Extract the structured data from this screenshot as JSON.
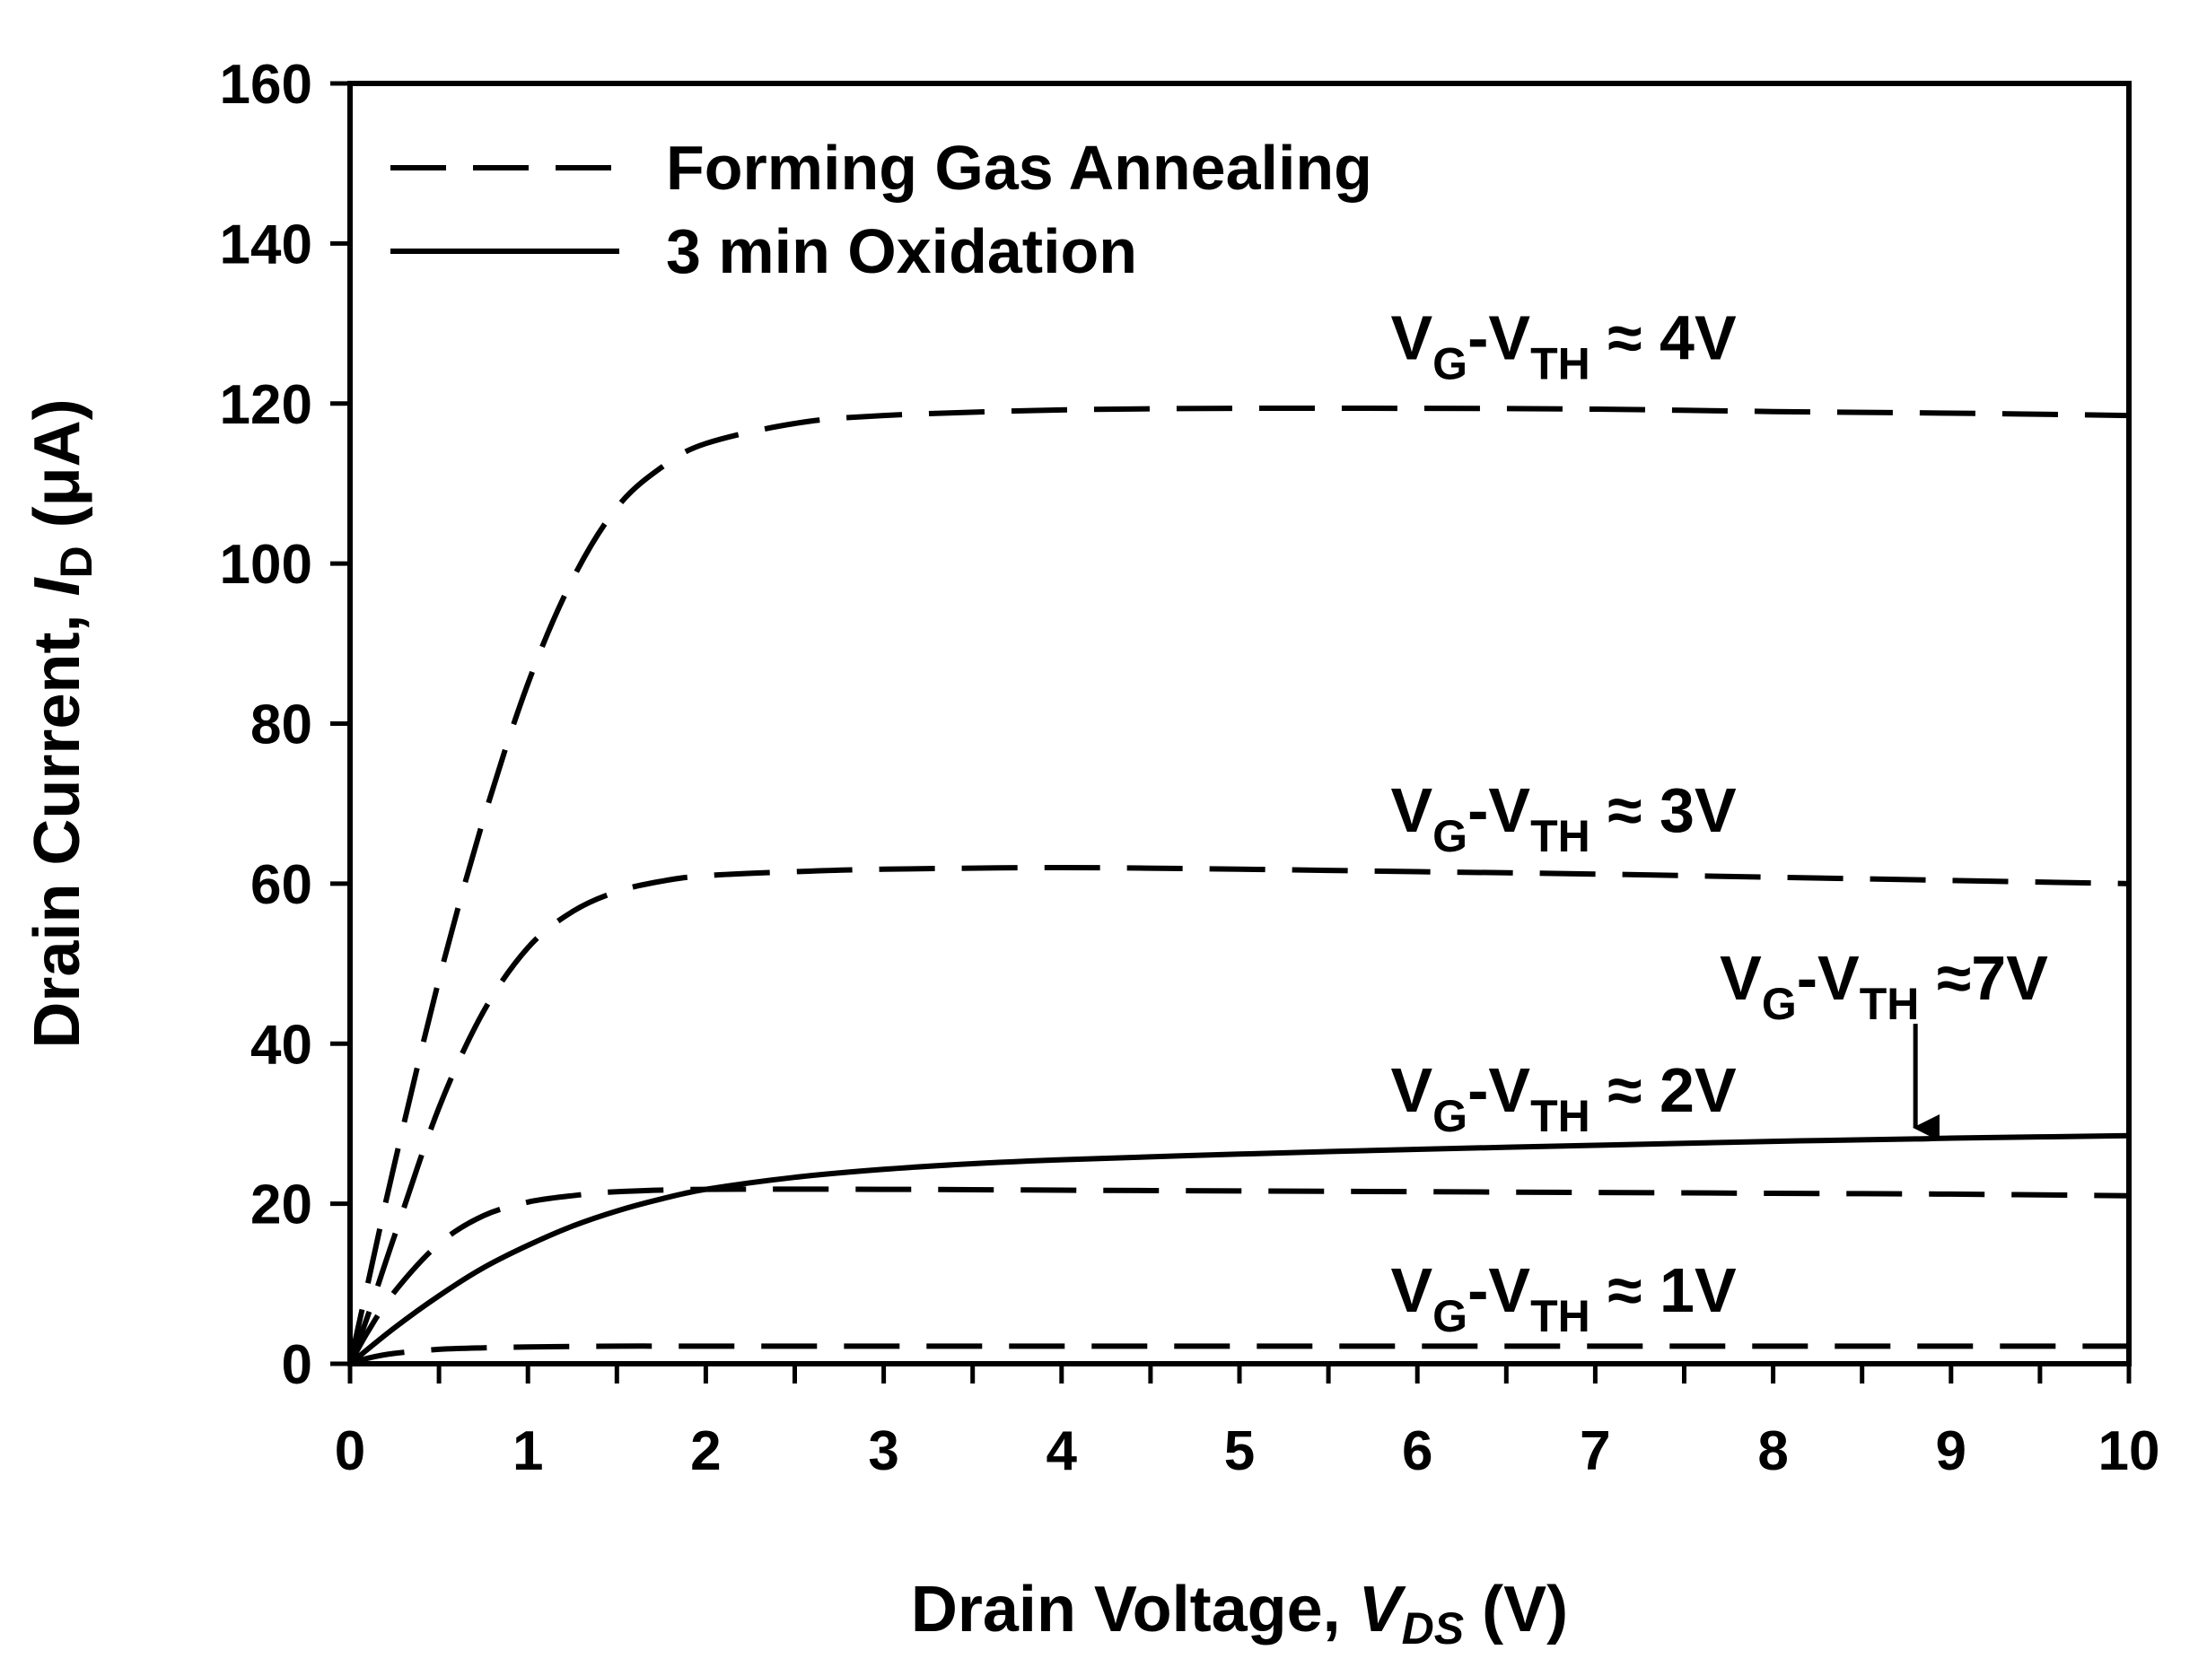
{
  "chart_data": {
    "type": "line",
    "xlabel": {
      "prefix": "Drain Voltage, ",
      "var_main": "V",
      "var_sub": "DS",
      "suffix": " (V)"
    },
    "ylabel": {
      "prefix": "Drain Current, ",
      "var_main": "I",
      "var_sub": "D",
      "suffix": " (μA)"
    },
    "xlim": [
      0,
      10
    ],
    "ylim": [
      0,
      160
    ],
    "x_ticks": [
      "0",
      "1",
      "2",
      "3",
      "4",
      "5",
      "6",
      "7",
      "8",
      "9",
      "10"
    ],
    "y_ticks": [
      "0",
      "20",
      "40",
      "60",
      "80",
      "100",
      "120",
      "140",
      "160"
    ],
    "legend": [
      {
        "label": "Forming Gas Annealing",
        "style": "dashed"
      },
      {
        "label": "3 min Oxidation",
        "style": "solid"
      }
    ],
    "series": [
      {
        "name": "Forming Gas Annealing, VG-VTH ≈ 4V",
        "style": "dashed",
        "x": [
          0,
          0.1,
          0.25,
          0.5,
          0.75,
          1.0,
          1.25,
          1.5,
          1.75,
          2.0,
          2.5,
          3,
          4,
          5,
          6,
          7,
          8,
          9,
          10
        ],
        "y": [
          0,
          10,
          25,
          48,
          68,
          85,
          98,
          107,
          112,
          115,
          117.5,
          118.5,
          119.2,
          119.4,
          119.4,
          119.3,
          119.0,
          118.8,
          118.5
        ]
      },
      {
        "name": "Forming Gas Annealing, VG-VTH ≈ 3V",
        "style": "dashed",
        "x": [
          0,
          0.1,
          0.25,
          0.5,
          0.75,
          1.0,
          1.25,
          1.5,
          1.75,
          2.0,
          2.5,
          3,
          4,
          5,
          6,
          7,
          8,
          9,
          10
        ],
        "y": [
          0,
          6,
          16,
          32,
          44,
          52,
          56.5,
          59,
          60.3,
          61,
          61.5,
          61.8,
          62,
          61.8,
          61.5,
          61.2,
          60.8,
          60.4,
          60.0
        ]
      },
      {
        "name": "Forming Gas Annealing, VG-VTH ≈ 2V",
        "style": "dashed",
        "x": [
          0,
          0.1,
          0.25,
          0.5,
          0.75,
          1.0,
          1.25,
          1.5,
          2.0,
          3,
          4,
          5,
          6,
          7,
          8,
          9,
          10
        ],
        "y": [
          0,
          4,
          9,
          15,
          18.5,
          20.2,
          21,
          21.5,
          21.8,
          21.8,
          21.7,
          21.6,
          21.5,
          21.4,
          21.3,
          21.2,
          21.0
        ]
      },
      {
        "name": "Forming Gas Annealing, VG-VTH ≈ 1V",
        "style": "dashed",
        "x": [
          0,
          0.1,
          0.25,
          0.5,
          0.75,
          1.0,
          1.5,
          2,
          3,
          4,
          5,
          6,
          7,
          8,
          9,
          10
        ],
        "y": [
          0,
          0.7,
          1.3,
          1.8,
          2.0,
          2.1,
          2.2,
          2.2,
          2.2,
          2.2,
          2.2,
          2.2,
          2.2,
          2.2,
          2.2,
          2.2
        ]
      },
      {
        "name": "3 min Oxidation, VG-VTH ≈ 7V",
        "style": "solid",
        "x": [
          0,
          0.25,
          0.5,
          0.75,
          1.0,
          1.25,
          1.5,
          1.75,
          2.0,
          2.5,
          3,
          3.5,
          4,
          5,
          6,
          7,
          8,
          8.8,
          9,
          10
        ],
        "y": [
          0,
          4.5,
          8.5,
          12,
          14.8,
          17.2,
          19.1,
          20.6,
          21.8,
          23.3,
          24.3,
          25,
          25.5,
          26.2,
          26.8,
          27.3,
          27.8,
          28.1,
          28.2,
          28.5
        ]
      }
    ],
    "annotations": [
      {
        "main1": "V",
        "sub1": "G",
        "mid": "-V",
        "sub2": "TH",
        "tail": " ≈ 4V",
        "x": 5.85,
        "y": 125.5
      },
      {
        "main1": "V",
        "sub1": "G",
        "mid": "-V",
        "sub2": "TH",
        "tail": " ≈ 3V",
        "x": 5.85,
        "y": 66.5
      },
      {
        "main1": "V",
        "sub1": "G",
        "mid": "-V",
        "sub2": "TH",
        "tail": "  ≈7V",
        "x": 7.7,
        "y": 45.5
      },
      {
        "main1": "V",
        "sub1": "G",
        "mid": "-V",
        "sub2": "TH",
        "tail": " ≈ 2V",
        "x": 5.85,
        "y": 31.5
      },
      {
        "main1": "V",
        "sub1": "G",
        "mid": "-V",
        "sub2": "TH",
        "tail": " ≈ 1V",
        "x": 5.85,
        "y": 6.5
      }
    ],
    "arrow": {
      "x": 8.8,
      "y_from": 42.5,
      "y_to": 29.5
    }
  }
}
